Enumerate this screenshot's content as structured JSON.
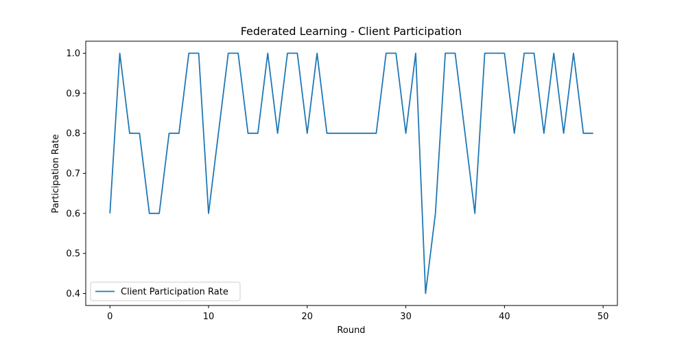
{
  "chart_data": {
    "type": "line",
    "title": "Federated Learning - Client Participation",
    "xlabel": "Round",
    "ylabel": "Participation Rate",
    "xlim": [
      -2.45,
      51.45
    ],
    "ylim": [
      0.37,
      1.03
    ],
    "xticks": [
      0,
      10,
      20,
      30,
      40,
      50
    ],
    "xtick_labels": [
      "0",
      "10",
      "20",
      "30",
      "40",
      "50"
    ],
    "yticks": [
      0.4,
      0.5,
      0.6,
      0.7,
      0.8,
      0.9,
      1.0
    ],
    "ytick_labels": [
      "0.4",
      "0.5",
      "0.6",
      "0.7",
      "0.8",
      "0.9",
      "1.0"
    ],
    "grid": false,
    "legend_position": "lower left",
    "series": [
      {
        "name": "Client Participation Rate",
        "color": "#1f77b4",
        "x": [
          0,
          1,
          2,
          3,
          4,
          5,
          6,
          7,
          8,
          9,
          10,
          11,
          12,
          13,
          14,
          15,
          16,
          17,
          18,
          19,
          20,
          21,
          22,
          23,
          24,
          25,
          26,
          27,
          28,
          29,
          30,
          31,
          32,
          33,
          34,
          35,
          36,
          37,
          38,
          39,
          40,
          41,
          42,
          43,
          44,
          45,
          46,
          47,
          48,
          49
        ],
        "y": [
          0.6,
          1.0,
          0.8,
          0.8,
          0.6,
          0.6,
          0.8,
          0.8,
          1.0,
          1.0,
          0.6,
          0.8,
          1.0,
          1.0,
          0.8,
          0.8,
          1.0,
          0.8,
          1.0,
          1.0,
          0.8,
          1.0,
          0.8,
          0.8,
          0.8,
          0.8,
          0.8,
          0.8,
          1.0,
          1.0,
          0.8,
          1.0,
          0.4,
          0.6,
          1.0,
          1.0,
          0.8,
          0.6,
          1.0,
          1.0,
          1.0,
          0.8,
          1.0,
          1.0,
          0.8,
          1.0,
          0.8,
          1.0,
          0.8,
          0.8
        ]
      }
    ]
  }
}
